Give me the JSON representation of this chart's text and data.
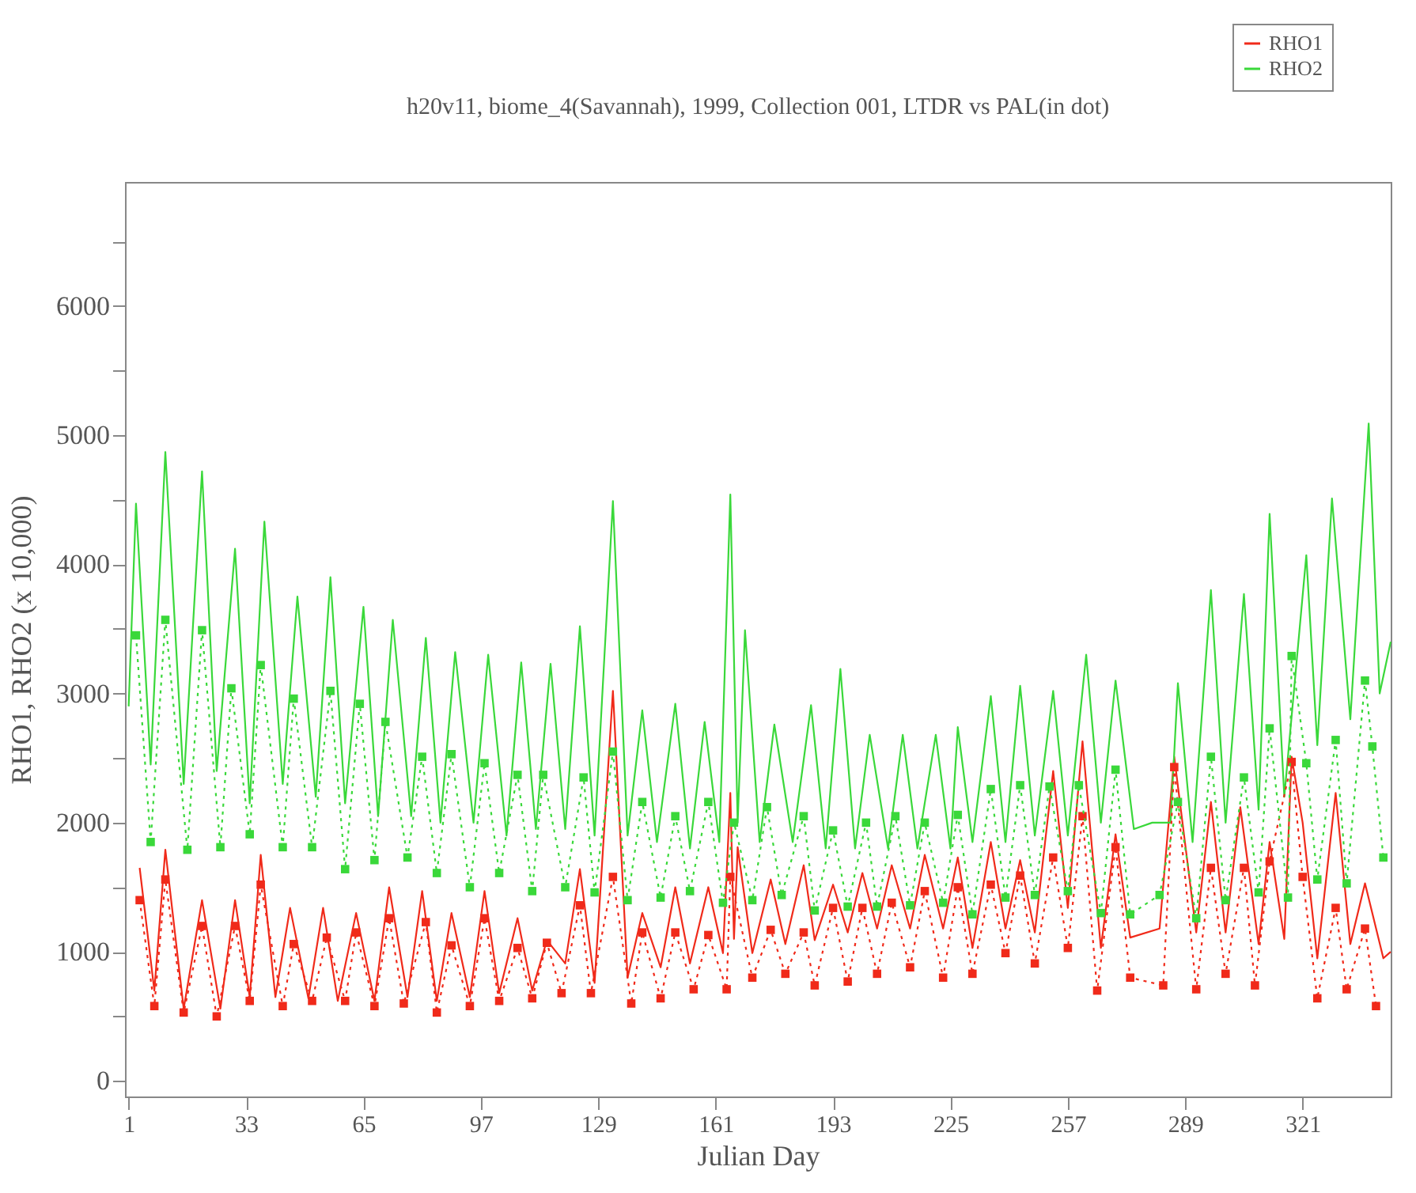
{
  "chart_data": {
    "type": "line",
    "title": "h20v11, biome_4(Savannah), 1999, Collection 001, LTDR vs PAL(in dot)",
    "xlabel": "Julian Day",
    "ylabel": "RHO1, RHO2 (x 10,000)",
    "xlim": [
      0,
      345
    ],
    "ylim": [
      -120,
      6960
    ],
    "xticks": [
      1,
      33,
      65,
      97,
      129,
      161,
      193,
      225,
      257,
      289,
      321
    ],
    "yticks": [
      0,
      {
        "value": 500,
        "label": null
      },
      1000,
      {
        "value": 1500,
        "label": null
      },
      2000,
      {
        "value": 2500,
        "label": null
      },
      3000,
      {
        "value": 3500,
        "label": null
      },
      4000,
      {
        "value": 4500,
        "label": null
      },
      5000,
      {
        "value": 5500,
        "label": null
      },
      6000,
      {
        "value": 6500,
        "label": null
      }
    ],
    "grid": false,
    "legend": "top right",
    "series": [
      {
        "name": "RHO1",
        "color": "#f02a1a",
        "line_style": "solid",
        "marker": "none",
        "x": [
          4,
          8,
          11,
          16,
          21,
          26,
          30,
          34,
          37,
          41,
          45,
          50,
          54,
          58,
          63,
          68,
          72,
          77,
          81,
          85,
          89,
          94,
          98,
          102,
          107,
          111,
          115,
          120,
          124,
          128,
          133,
          137,
          141,
          146,
          150,
          154,
          159,
          163,
          165,
          166,
          167,
          171,
          176,
          180,
          185,
          188,
          193,
          197,
          201,
          205,
          209,
          214,
          218,
          223,
          227,
          231,
          236,
          240,
          244,
          248,
          253,
          257,
          261,
          266,
          270,
          274,
          282,
          286,
          292,
          296,
          300,
          304,
          309,
          312,
          316,
          318,
          321,
          325,
          330,
          334,
          338,
          343,
          345
        ],
        "values": [
          1650,
          700,
          1790,
          560,
          1400,
          560,
          1400,
          650,
          1750,
          650,
          1340,
          640,
          1340,
          620,
          1300,
          620,
          1500,
          650,
          1470,
          620,
          1300,
          650,
          1470,
          680,
          1260,
          700,
          1090,
          910,
          1640,
          760,
          3020,
          800,
          1300,
          880,
          1500,
          910,
          1500,
          990,
          2230,
          1100,
          1810,
          990,
          1560,
          1060,
          1670,
          1090,
          1520,
          1150,
          1610,
          1180,
          1670,
          1180,
          1750,
          1180,
          1730,
          1030,
          1850,
          1180,
          1710,
          1150,
          2400,
          1340,
          2630,
          1030,
          1910,
          1110,
          1180,
          2510,
          1150,
          2160,
          1150,
          2120,
          1060,
          1850,
          1100,
          2510,
          2000,
          950,
          2230,
          1060,
          1530,
          950,
          1000
        ]
      },
      {
        "name": "RHO2",
        "color": "#3ad83a",
        "line_style": "solid",
        "marker": "none",
        "x": [
          1,
          3,
          7,
          11,
          16,
          21,
          25,
          30,
          34,
          38,
          43,
          47,
          52,
          56,
          60,
          65,
          69,
          73,
          78,
          82,
          86,
          90,
          95,
          99,
          104,
          108,
          112,
          116,
          120,
          124,
          128,
          133,
          137,
          141,
          145,
          150,
          154,
          158,
          162,
          165,
          167,
          169,
          173,
          177,
          182,
          187,
          191,
          195,
          199,
          203,
          208,
          212,
          216,
          221,
          225,
          227,
          231,
          236,
          240,
          244,
          248,
          253,
          257,
          262,
          266,
          270,
          275,
          280,
          285,
          287,
          291,
          296,
          300,
          305,
          309,
          312,
          316,
          322,
          325,
          329,
          334,
          339,
          342,
          345
        ],
        "values": [
          2900,
          4470,
          2450,
          4870,
          2300,
          4720,
          2400,
          4120,
          2150,
          4330,
          2300,
          3750,
          2200,
          3900,
          2150,
          3670,
          2050,
          3570,
          2050,
          3430,
          2000,
          3320,
          2000,
          3300,
          1900,
          3240,
          1950,
          3230,
          1950,
          3520,
          1900,
          4490,
          1900,
          2870,
          1850,
          2920,
          1800,
          2780,
          1850,
          4540,
          2000,
          3490,
          1850,
          2760,
          1850,
          2910,
          1800,
          3190,
          1800,
          2680,
          1800,
          2680,
          1800,
          2680,
          1800,
          2740,
          1850,
          2980,
          1850,
          3060,
          1900,
          3020,
          1900,
          3300,
          2000,
          3100,
          1950,
          2000,
          2000,
          3080,
          1850,
          3800,
          2000,
          3770,
          2100,
          4390,
          2200,
          4070,
          2600,
          4510,
          2800,
          5090,
          3000,
          3400
        ]
      },
      {
        "color": "#f02a1a",
        "line_style": "dotted",
        "marker": "square",
        "x": [
          4,
          8,
          11,
          16,
          21,
          25,
          30,
          34,
          37,
          43,
          46,
          51,
          55,
          60,
          63,
          68,
          72,
          76,
          82,
          85,
          89,
          94,
          98,
          102,
          107,
          111,
          115,
          119,
          124,
          127,
          133,
          138,
          141,
          146,
          150,
          155,
          159,
          164,
          165,
          171,
          176,
          180,
          185,
          188,
          193,
          197,
          201,
          205,
          209,
          214,
          218,
          223,
          227,
          231,
          236,
          240,
          244,
          248,
          253,
          257,
          261,
          265,
          270,
          274,
          283,
          286,
          292,
          296,
          300,
          305,
          308,
          312,
          318,
          321,
          325,
          330,
          333,
          338,
          341
        ],
        "values": [
          1400,
          580,
          1560,
          530,
          1200,
          500,
          1200,
          620,
          1520,
          580,
          1060,
          620,
          1110,
          620,
          1150,
          580,
          1260,
          600,
          1230,
          530,
          1050,
          580,
          1260,
          620,
          1030,
          640,
          1070,
          680,
          1360,
          680,
          1580,
          600,
          1150,
          640,
          1150,
          710,
          1130,
          710,
          1580,
          800,
          1170,
          830,
          1150,
          740,
          1340,
          770,
          1340,
          830,
          1380,
          880,
          1470,
          800,
          1500,
          830,
          1520,
          990,
          1590,
          910,
          1730,
          1030,
          2050,
          700,
          1810,
          800,
          740,
          2430,
          710,
          1650,
          830,
          1650,
          740,
          1700,
          2470,
          1580,
          640,
          1340,
          710,
          1180,
          580
        ]
      },
      {
        "color": "#3ad83a",
        "line_style": "dotted",
        "marker": "square",
        "x": [
          3,
          7,
          11,
          17,
          21,
          26,
          29,
          34,
          37,
          43,
          46,
          51,
          56,
          60,
          64,
          68,
          71,
          77,
          81,
          85,
          89,
          94,
          98,
          102,
          107,
          111,
          114,
          120,
          125,
          128,
          133,
          137,
          141,
          146,
          150,
          154,
          159,
          163,
          166,
          171,
          175,
          179,
          185,
          188,
          193,
          197,
          202,
          205,
          210,
          214,
          218,
          223,
          227,
          231,
          236,
          240,
          244,
          248,
          252,
          257,
          260,
          266,
          270,
          274,
          282,
          287,
          292,
          296,
          300,
          305,
          309,
          312,
          317,
          318,
          322,
          325,
          330,
          333,
          338,
          340,
          343
        ],
        "values": [
          3450,
          1850,
          3570,
          1790,
          3490,
          1810,
          3040,
          1910,
          3220,
          1810,
          2960,
          1810,
          3020,
          1640,
          2920,
          1710,
          2780,
          1730,
          2510,
          1610,
          2530,
          1500,
          2460,
          1610,
          2370,
          1470,
          2370,
          1500,
          2350,
          1460,
          2550,
          1400,
          2160,
          1420,
          2050,
          1470,
          2160,
          1380,
          2000,
          1400,
          2120,
          1440,
          2050,
          1320,
          1940,
          1350,
          2000,
          1350,
          2050,
          1360,
          2000,
          1380,
          2060,
          1290,
          2260,
          1420,
          2290,
          1440,
          2280,
          1470,
          2290,
          1300,
          2410,
          1290,
          1440,
          2160,
          1260,
          2510,
          1400,
          2350,
          1460,
          2730,
          1420,
          3290,
          2460,
          1560,
          2640,
          1530,
          3100,
          2590,
          1730
        ]
      }
    ]
  }
}
